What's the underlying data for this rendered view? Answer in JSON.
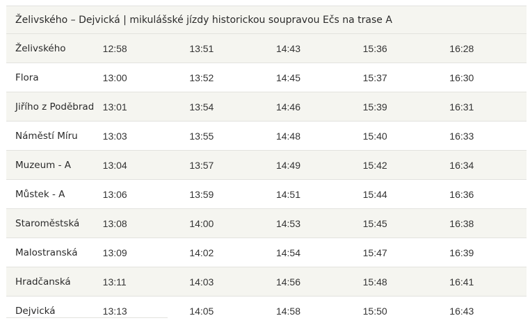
{
  "table": {
    "title": "Želivského – Dejvická | mikulášské jízdy historickou soupravou Ečs na trase A",
    "rows": [
      {
        "stop": "Želivského",
        "times": [
          "12:58",
          "13:51",
          "14:43",
          "15:36",
          "16:28"
        ]
      },
      {
        "stop": "Flora",
        "times": [
          "13:00",
          "13:52",
          "14:45",
          "15:37",
          "16:30"
        ]
      },
      {
        "stop": "Jiřího z Poděbrad",
        "times": [
          "13:01",
          "13:54",
          "14:46",
          "15:39",
          "16:31"
        ]
      },
      {
        "stop": "Náměstí Míru",
        "times": [
          "13:03",
          "13:55",
          "14:48",
          "15:40",
          "16:33"
        ]
      },
      {
        "stop": "Muzeum - A",
        "times": [
          "13:04",
          "13:57",
          "14:49",
          "15:42",
          "16:34"
        ]
      },
      {
        "stop": "Můstek - A",
        "times": [
          "13:06",
          "13:59",
          "14:51",
          "15:44",
          "16:36"
        ]
      },
      {
        "stop": "Staroměstská",
        "times": [
          "13:08",
          "14:00",
          "14:53",
          "15:45",
          "16:38"
        ]
      },
      {
        "stop": "Malostranská",
        "times": [
          "13:09",
          "14:02",
          "14:54",
          "15:47",
          "16:39"
        ]
      },
      {
        "stop": "Hradčanská",
        "times": [
          "13:11",
          "14:03",
          "14:56",
          "15:48",
          "16:41"
        ]
      },
      {
        "stop": "Dejvická",
        "times": [
          "13:13",
          "14:05",
          "14:58",
          "15:50",
          "16:43"
        ]
      }
    ]
  },
  "colors": {
    "stripe": "#f5f5f0",
    "border": "#e2e2de",
    "text": "#2a2a2a"
  }
}
